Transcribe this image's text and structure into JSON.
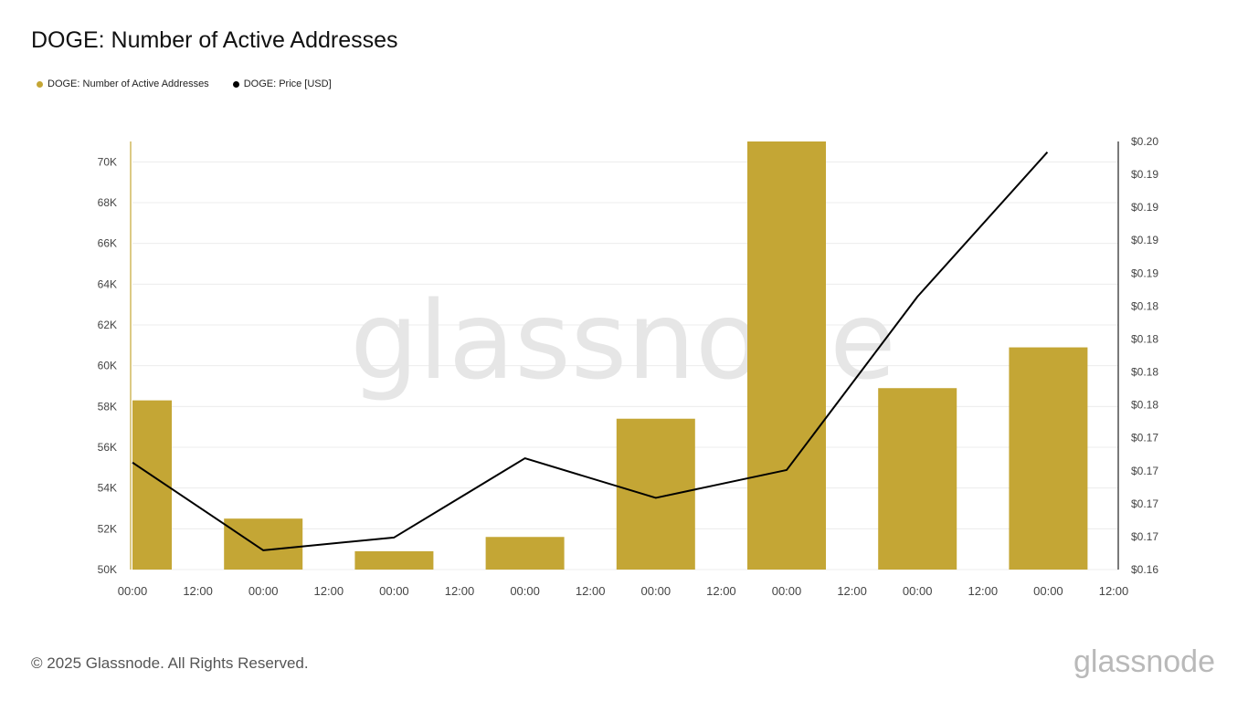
{
  "title": "DOGE: Number of Active Addresses",
  "legend": [
    {
      "label": "DOGE: Number of Active Addresses",
      "color": "#C4A635"
    },
    {
      "label": "DOGE: Price [USD]",
      "color": "#000000"
    }
  ],
  "footer": "© 2025 Glassnode. All Rights Reserved.",
  "brand": "glassnode",
  "watermark": "glassnode",
  "chart_data": {
    "type": "bar",
    "x_ticks": [
      "00:00",
      "12:00",
      "00:00",
      "12:00",
      "00:00",
      "12:00",
      "00:00",
      "12:00",
      "00:00",
      "12:00",
      "00:00",
      "12:00",
      "00:00",
      "12:00",
      "00:00",
      "12:00"
    ],
    "left_axis": {
      "ticks": [
        "50K",
        "52K",
        "54K",
        "56K",
        "58K",
        "60K",
        "62K",
        "64K",
        "66K",
        "68K",
        "70K"
      ],
      "ylim": [
        50000,
        71000
      ]
    },
    "right_axis": {
      "ticks": [
        "$0.16",
        "$0.17",
        "$0.17",
        "$0.17",
        "$0.17",
        "$0.18",
        "$0.18",
        "$0.18",
        "$0.18",
        "$0.19",
        "$0.19",
        "$0.19",
        "$0.19",
        "$0.20"
      ],
      "ylim": [
        0.16,
        0.2
      ]
    },
    "series": [
      {
        "name": "DOGE: Number of Active Addresses",
        "type": "bar",
        "axis": "left",
        "color": "#C4A635",
        "values": [
          58300,
          52500,
          50900,
          51600,
          57400,
          71000,
          58900,
          60900
        ]
      },
      {
        "name": "DOGE: Price [USD]",
        "type": "line",
        "axis": "right",
        "color": "#000000",
        "values": [
          0.17,
          0.1618,
          0.163,
          0.1704,
          0.1667,
          0.1693,
          0.1855,
          0.199
        ]
      }
    ]
  }
}
